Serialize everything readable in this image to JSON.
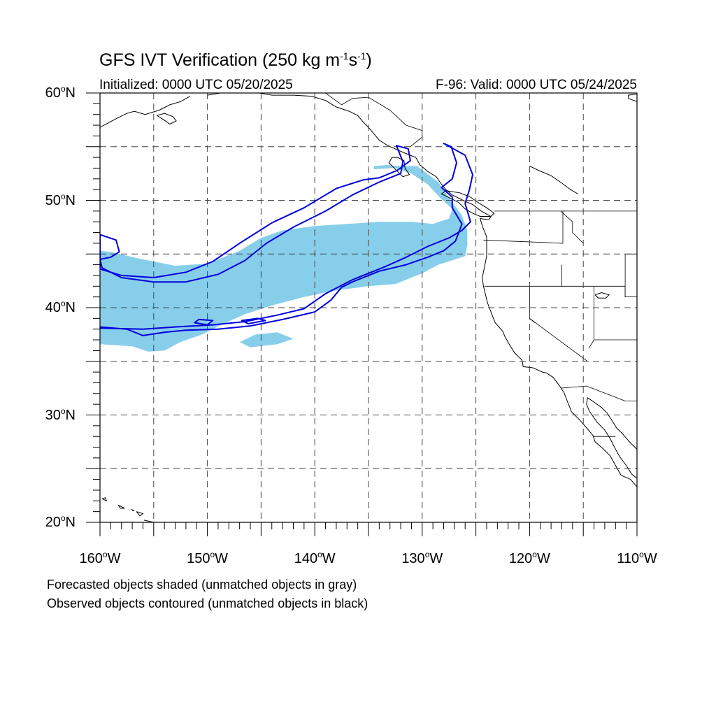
{
  "title": {
    "main": "GFS IVT Verification (250 kg m",
    "unit_m_exp": "-1",
    "unit_s": "s",
    "unit_s_exp": "-1",
    "close": ")"
  },
  "subtitle_left": "Initialized: 0000 UTC 05/20/2025",
  "subtitle_right": "F-96: Valid: 0000 UTC 05/24/2025",
  "map": {
    "lon_range": [
      -160,
      -110
    ],
    "lat_range": [
      20,
      60
    ],
    "grid_spacing_deg": 5,
    "grid_style": "dashed",
    "colors": {
      "forecast_matched": "#87ceeb",
      "observed_matched": "#0000dd",
      "coastline": "#000000"
    }
  },
  "axes": {
    "lat_labels": [
      {
        "lat": 60,
        "text": "60",
        "hemi": "N"
      },
      {
        "lat": 50,
        "text": "50",
        "hemi": "N"
      },
      {
        "lat": 40,
        "text": "40",
        "hemi": "N"
      },
      {
        "lat": 30,
        "text": "30",
        "hemi": "N"
      },
      {
        "lat": 20,
        "text": "20",
        "hemi": "N"
      }
    ],
    "lon_labels": [
      {
        "lon": -160,
        "text": "160",
        "hemi": "W"
      },
      {
        "lon": -150,
        "text": "150",
        "hemi": "W"
      },
      {
        "lon": -140,
        "text": "140",
        "hemi": "W"
      },
      {
        "lon": -130,
        "text": "130",
        "hemi": "W"
      },
      {
        "lon": -120,
        "text": "120",
        "hemi": "W"
      },
      {
        "lon": -110,
        "text": "110",
        "hemi": "W"
      }
    ]
  },
  "legend": {
    "line1": "Forecasted objects shaded (unmatched objects in gray)",
    "line2": "Observed objects contoured (unmatched objects in black)"
  },
  "forecast_objects": [
    {
      "status": "matched",
      "outline": [
        [
          -160,
          45.3
        ],
        [
          -159,
          45.2
        ],
        [
          -156.5,
          44.6
        ],
        [
          -153,
          43.9
        ],
        [
          -150,
          44.1
        ],
        [
          -147,
          45.3
        ],
        [
          -145,
          46.5
        ],
        [
          -143,
          47.2
        ],
        [
          -140,
          47.6
        ],
        [
          -137,
          47.8
        ],
        [
          -134,
          48.0
        ],
        [
          -131,
          48.0
        ],
        [
          -129,
          47.8
        ],
        [
          -127.5,
          48.3
        ],
        [
          -127.2,
          49.2
        ],
        [
          -128.3,
          50.2
        ],
        [
          -129.5,
          51.5
        ],
        [
          -131,
          52.5
        ],
        [
          -132.5,
          53.0
        ],
        [
          -134,
          53.2
        ],
        [
          -130.5,
          53.2
        ],
        [
          -128.5,
          51.7
        ],
        [
          -127.2,
          49.8
        ],
        [
          -126.3,
          48.6
        ],
        [
          -125.8,
          47.2
        ],
        [
          -125.8,
          45.8
        ],
        [
          -126,
          44.8
        ],
        [
          -128.5,
          44.0
        ],
        [
          -130,
          43.2
        ],
        [
          -132.5,
          42.2
        ],
        [
          -135,
          42.0
        ],
        [
          -138,
          41.6
        ],
        [
          -141,
          41.0
        ],
        [
          -144,
          40.2
        ],
        [
          -146.5,
          39.4
        ],
        [
          -148.5,
          38.5
        ],
        [
          -150.5,
          37.5
        ],
        [
          -152.5,
          36.8
        ],
        [
          -154,
          36.0
        ],
        [
          -155.5,
          35.9
        ],
        [
          -157,
          36.4
        ],
        [
          -158.5,
          36.5
        ],
        [
          -160,
          36.6
        ]
      ]
    },
    {
      "status": "matched",
      "outline": [
        [
          -143.5,
          37.7
        ],
        [
          -142,
          37.1
        ],
        [
          -143.5,
          36.6
        ],
        [
          -146,
          36.3
        ],
        [
          -147,
          36.8
        ],
        [
          -145.5,
          37.5
        ]
      ]
    },
    {
      "status": "matched",
      "outline": [
        [
          -134.5,
          53.2
        ],
        [
          -133,
          53.3
        ],
        [
          -132.7,
          53.0
        ],
        [
          -134.5,
          52.9
        ]
      ]
    }
  ],
  "observed_objects": [
    {
      "status": "matched",
      "outline": [
        [
          -160,
          46.8
        ],
        [
          -158.5,
          46.3
        ],
        [
          -158.2,
          45.2
        ],
        [
          -159,
          44.7
        ],
        [
          -160,
          44.5
        ],
        [
          -159.8,
          43.7
        ],
        [
          -158,
          42.8
        ],
        [
          -155,
          42.4
        ],
        [
          -152,
          42.4
        ],
        [
          -149,
          43.1
        ],
        [
          -146.5,
          44.4
        ],
        [
          -144.5,
          46.0
        ],
        [
          -142,
          47.5
        ],
        [
          -139,
          49.0
        ],
        [
          -136.5,
          50.5
        ],
        [
          -134,
          51.7
        ],
        [
          -132,
          52.5
        ],
        [
          -131.8,
          53.6
        ],
        [
          -132.4,
          55.1
        ],
        [
          -131.3,
          54.8
        ],
        [
          -131.1,
          53.7
        ],
        [
          -132.3,
          52.8
        ],
        [
          -134,
          52.1
        ],
        [
          -135.5,
          51.9
        ],
        [
          -138,
          51.1
        ],
        [
          -141,
          49.3
        ],
        [
          -144,
          47.9
        ],
        [
          -147,
          46.0
        ],
        [
          -149.5,
          44.3
        ],
        [
          -152,
          43.3
        ],
        [
          -155,
          42.8
        ],
        [
          -158,
          43.0
        ],
        [
          -160,
          43.6
        ]
      ]
    },
    {
      "status": "matched",
      "outline": [
        [
          -160,
          38.2
        ],
        [
          -157.5,
          38.0
        ],
        [
          -156,
          37.4
        ],
        [
          -154,
          37.7
        ],
        [
          -152,
          37.9
        ],
        [
          -149,
          38.0
        ],
        [
          -146,
          38.3
        ],
        [
          -143,
          38.9
        ],
        [
          -140,
          39.6
        ],
        [
          -138.5,
          40.7
        ],
        [
          -137.5,
          41.9
        ],
        [
          -136.5,
          42.4
        ],
        [
          -134,
          43.4
        ],
        [
          -131.5,
          44.0
        ],
        [
          -129.5,
          44.7
        ],
        [
          -128,
          45.3
        ],
        [
          -126.9,
          46.2
        ],
        [
          -126.3,
          47.8
        ],
        [
          -127.2,
          49.3
        ],
        [
          -127.2,
          50.3
        ],
        [
          -128.2,
          51.2
        ],
        [
          -127.2,
          52.0
        ],
        [
          -126.8,
          53.5
        ],
        [
          -127.3,
          55.0
        ],
        [
          -128,
          55.3
        ],
        [
          -126,
          54.2
        ],
        [
          -125.3,
          52.4
        ],
        [
          -125.6,
          51.0
        ],
        [
          -126,
          49.7
        ],
        [
          -125.5,
          48.0
        ],
        [
          -126.3,
          47.2
        ],
        [
          -127.5,
          46.5
        ],
        [
          -129.5,
          45.7
        ],
        [
          -131.5,
          44.7
        ],
        [
          -133.5,
          43.8
        ],
        [
          -136.5,
          42.6
        ],
        [
          -139,
          41.3
        ],
        [
          -141,
          39.9
        ],
        [
          -143.5,
          39.3
        ],
        [
          -146.5,
          38.7
        ],
        [
          -149.5,
          38.4
        ],
        [
          -153,
          38.2
        ],
        [
          -156,
          38.0
        ],
        [
          -160,
          38.1
        ]
      ]
    },
    {
      "status": "matched",
      "outline": [
        [
          -146.8,
          38.8
        ],
        [
          -145.3,
          39.0
        ],
        [
          -144.6,
          38.8
        ],
        [
          -146.2,
          38.5
        ]
      ]
    },
    {
      "status": "matched",
      "outline": [
        [
          -150,
          38.4
        ],
        [
          -149.5,
          38.8
        ],
        [
          -150.8,
          38.9
        ],
        [
          -151.2,
          38.6
        ]
      ]
    }
  ],
  "coastlines": [
    [
      [
        -160,
        56.8
      ],
      [
        -158.5,
        57.6
      ],
      [
        -157.5,
        58.1
      ],
      [
        -156.8,
        58.3
      ],
      [
        -155.8,
        58.0
      ],
      [
        -154.5,
        58.4
      ],
      [
        -153.5,
        58.9
      ],
      [
        -152.5,
        59.2
      ],
      [
        -151.6,
        59.7
      ]
    ],
    [
      [
        -150,
        59.8
      ],
      [
        -148.8,
        60
      ]
    ],
    [
      [
        -145.2,
        60
      ],
      [
        -144,
        59.8
      ],
      [
        -142,
        59.8
      ],
      [
        -140.3,
        59.7
      ],
      [
        -139,
        59.3
      ],
      [
        -138,
        58.7
      ],
      [
        -136.8,
        58.3
      ],
      [
        -136,
        57.9
      ],
      [
        -135.5,
        57.3
      ],
      [
        -135,
        56.8
      ],
      [
        -134.5,
        56.2
      ],
      [
        -134,
        55.6
      ],
      [
        -133.2,
        55.1
      ],
      [
        -132.3,
        54.7
      ],
      [
        -131.6,
        54.4
      ],
      [
        -130.6,
        54.0
      ],
      [
        -130.2,
        53.3
      ],
      [
        -129.5,
        52.7
      ],
      [
        -128.7,
        52.2
      ],
      [
        -128.2,
        51.5
      ],
      [
        -127.8,
        51.0
      ],
      [
        -127.2,
        50.5
      ],
      [
        -126.2,
        50.0
      ],
      [
        -125.3,
        49.6
      ],
      [
        -124.5,
        49.0
      ],
      [
        -123.6,
        48.5
      ],
      [
        -123.8,
        48.2
      ],
      [
        -124.6,
        48.3
      ],
      [
        -124.4,
        47.6
      ],
      [
        -124.0,
        46.6
      ],
      [
        -124.0,
        45.7
      ],
      [
        -124.0,
        44.8
      ],
      [
        -124.2,
        43.8
      ],
      [
        -124.4,
        42.8
      ],
      [
        -124.3,
        42.0
      ],
      [
        -124.1,
        41.2
      ],
      [
        -123.9,
        40.4
      ],
      [
        -123.6,
        39.6
      ],
      [
        -123.2,
        38.6
      ],
      [
        -122.5,
        37.8
      ],
      [
        -122.3,
        37.3
      ],
      [
        -121.9,
        36.6
      ],
      [
        -121.4,
        35.8
      ],
      [
        -120.7,
        35.1
      ],
      [
        -120.6,
        34.5
      ],
      [
        -119.7,
        34.4
      ],
      [
        -118.8,
        34.0
      ],
      [
        -118.4,
        33.9
      ],
      [
        -117.8,
        33.5
      ],
      [
        -117.2,
        32.7
      ],
      [
        -116.8,
        32.1
      ],
      [
        -116.5,
        31.3
      ],
      [
        -116.1,
        30.3
      ],
      [
        -115.3,
        29.5
      ],
      [
        -114.6,
        28.7
      ],
      [
        -114.1,
        28.1
      ],
      [
        -113.9,
        27.5
      ],
      [
        -113.2,
        26.9
      ],
      [
        -112.5,
        26.2
      ],
      [
        -112.0,
        25.3
      ],
      [
        -111.5,
        24.4
      ],
      [
        -110.6,
        24.0
      ],
      [
        -110,
        23.3
      ]
    ],
    [
      [
        -110,
        26.8
      ],
      [
        -110.7,
        27.5
      ],
      [
        -111.3,
        28.2
      ],
      [
        -111.9,
        28.8
      ],
      [
        -112.4,
        29.6
      ],
      [
        -112.8,
        30.2
      ],
      [
        -113.3,
        30.7
      ],
      [
        -114.0,
        31.2
      ],
      [
        -114.6,
        31.6
      ],
      [
        -114.7,
        31.0
      ],
      [
        -114.4,
        30.3
      ],
      [
        -113.7,
        29.3
      ],
      [
        -113.0,
        28.6
      ],
      [
        -112.5,
        27.8
      ],
      [
        -112.1,
        27.0
      ],
      [
        -111.6,
        26.1
      ],
      [
        -111.0,
        25.3
      ],
      [
        -110.5,
        24.5
      ],
      [
        -110,
        24.1
      ]
    ],
    [
      [
        -123.6,
        48.5
      ],
      [
        -123.3,
        48.8
      ],
      [
        -124.0,
        49.3
      ],
      [
        -124.8,
        49.8
      ],
      [
        -125.5,
        50.3
      ],
      [
        -126.5,
        50.7
      ],
      [
        -127.8,
        50.9
      ],
      [
        -128.2,
        50.6
      ],
      [
        -127.4,
        50.2
      ],
      [
        -126.6,
        49.8
      ],
      [
        -126.0,
        49.2
      ],
      [
        -125.3,
        48.8
      ],
      [
        -124.6,
        48.5
      ],
      [
        -123.6,
        48.5
      ]
    ],
    [
      [
        -132.3,
        54.0
      ],
      [
        -131.7,
        53.7
      ],
      [
        -131.6,
        53.0
      ],
      [
        -131.2,
        52.4
      ],
      [
        -131.8,
        52.2
      ],
      [
        -132.4,
        52.8
      ],
      [
        -133.1,
        53.5
      ],
      [
        -132.8,
        54.0
      ],
      [
        -132.3,
        54.0
      ]
    ],
    [
      [
        -154.7,
        57.9
      ],
      [
        -153.9,
        57.4
      ],
      [
        -153.5,
        57.1
      ],
      [
        -152.9,
        57.4
      ],
      [
        -153.2,
        57.8
      ],
      [
        -154.0,
        58.1
      ],
      [
        -154.7,
        57.9
      ]
    ],
    [
      [
        -159.8,
        22.2
      ],
      [
        -159.4,
        22.0
      ],
      [
        -159.5,
        22.3
      ],
      [
        -159.8,
        22.2
      ]
    ],
    [
      [
        -158.3,
        21.6
      ],
      [
        -157.7,
        21.3
      ],
      [
        -158.1,
        21.3
      ],
      [
        -158.3,
        21.6
      ]
    ],
    [
      [
        -157.1,
        21.2
      ],
      [
        -156.8,
        21.1
      ],
      [
        -157.0,
        21.1
      ]
    ],
    [
      [
        -156.6,
        21.0
      ],
      [
        -156.0,
        20.8
      ],
      [
        -156.3,
        20.6
      ],
      [
        -156.6,
        21.0
      ]
    ],
    [
      [
        -155.9,
        20.2
      ],
      [
        -155.0,
        20.0
      ],
      [
        -155.0,
        19.7
      ]
    ],
    [
      [
        -113.9,
        41.2
      ],
      [
        -113.3,
        41.4
      ],
      [
        -112.6,
        41.2
      ],
      [
        -112.9,
        40.9
      ],
      [
        -113.6,
        40.9
      ],
      [
        -113.9,
        41.2
      ]
    ],
    [
      [
        -110,
        59.2
      ],
      [
        -110.8,
        59.5
      ],
      [
        -110.8,
        59.8
      ],
      [
        -110,
        59.9
      ]
    ],
    [
      [
        -120,
        53.2
      ],
      [
        -119.2,
        52.8
      ],
      [
        -118.0,
        52.3
      ],
      [
        -117.0,
        51.6
      ],
      [
        -116.2,
        51.0
      ],
      [
        -115.5,
        50.6
      ]
    ],
    [
      [
        -120,
        39.0
      ],
      [
        -119.5,
        38.6
      ]
    ]
  ],
  "borders": [
    [
      [
        -123.3,
        49.0
      ],
      [
        -110,
        49.0
      ]
    ],
    [
      [
        -124.2,
        42.0
      ],
      [
        -111.1,
        42.0
      ],
      [
        -111.1,
        41.0
      ],
      [
        -110,
        41.0
      ]
    ],
    [
      [
        -124.3,
        46.3
      ],
      [
        -116.9,
        46.0
      ],
      [
        -116.9,
        49.0
      ]
    ],
    [
      [
        -117.0,
        44.0
      ],
      [
        -117.0,
        42.0
      ]
    ],
    [
      [
        -120.0,
        42.0
      ],
      [
        -120.0,
        39.0
      ],
      [
        -114.6,
        35.0
      ]
    ],
    [
      [
        -117.1,
        49.0
      ],
      [
        -116.0,
        48.0
      ],
      [
        -116.0,
        47.0
      ],
      [
        -115.0,
        46.0
      ]
    ],
    [
      [
        -114.0,
        42.0
      ],
      [
        -114.0,
        37.0
      ],
      [
        -114.5,
        36.2
      ]
    ],
    [
      [
        -117.1,
        32.5
      ],
      [
        -114.7,
        32.7
      ],
      [
        -111.1,
        31.3
      ],
      [
        -110,
        31.3
      ]
    ],
    [
      [
        -114.0,
        37.0
      ],
      [
        -110,
        37.0
      ]
    ],
    [
      [
        -111.1,
        45.0
      ],
      [
        -110,
        45.0
      ]
    ],
    [
      [
        -111.1,
        45.0
      ],
      [
        -111.1,
        41.0
      ]
    ],
    [
      [
        -114.1,
        28.0
      ],
      [
        -112.0,
        28.0
      ]
    ],
    [
      [
        -131.1,
        55.0
      ],
      [
        -130.0,
        55.9
      ],
      [
        -130.0,
        56.5
      ],
      [
        -131.5,
        57.0
      ],
      [
        -133.0,
        58.4
      ],
      [
        -135.0,
        59.6
      ],
      [
        -136.5,
        59.5
      ],
      [
        -137.5,
        58.9
      ],
      [
        -139.0,
        60.0
      ]
    ],
    [
      [
        -141.0,
        60.0
      ],
      [
        -141.0,
        60.0
      ]
    ]
  ]
}
